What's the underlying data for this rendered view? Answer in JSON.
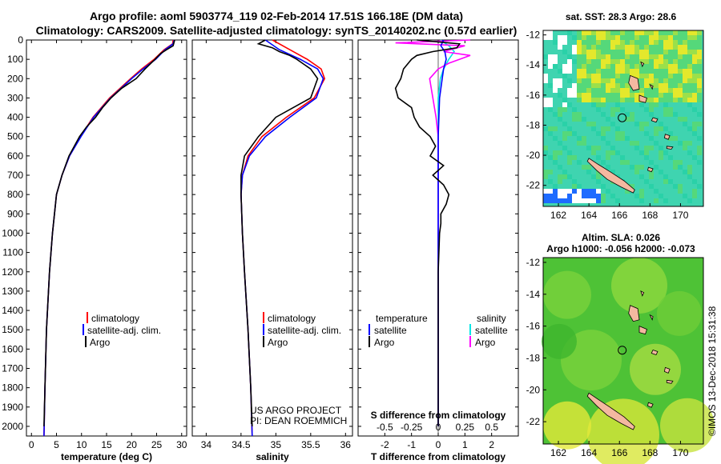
{
  "header": {
    "line1": "Argo profile: aoml 5903774_119 02-Feb-2014 17.51S 166.18E (DM data)",
    "line2": "Climatology: CARS2009. Satellite-adjusted climatology: synTS_20140202.nc (0.57d earlier)"
  },
  "credits": {
    "project": "US ARGO PROJECT",
    "pi": "PI: DEAN ROEMMICH",
    "imos": "©IMOS 13-Dec-2018 15:31:38"
  },
  "colors": {
    "climatology": "#ff0000",
    "satellite": "#0000ff",
    "argo": "#000000",
    "sal_satellite": "#00e5e5",
    "sal_argo": "#ff00ff"
  },
  "chart_data": [
    {
      "type": "line",
      "name": "temperature-profile",
      "xlabel": "temperature (deg C)",
      "ylabel": "depth",
      "xlim": [
        -1,
        31
      ],
      "ylim": [
        2050,
        0
      ],
      "xticks": [
        "0",
        "5",
        "10",
        "15",
        "20",
        "25",
        "30"
      ],
      "yticks": [
        "0",
        "100",
        "200",
        "300",
        "400",
        "500",
        "600",
        "700",
        "800",
        "900",
        "1000",
        "1100",
        "1200",
        "1300",
        "1400",
        "1500",
        "1600",
        "1700",
        "1800",
        "1900",
        "2000"
      ],
      "legend": [
        "climatology",
        "satellite-adj. clim.",
        "Argo"
      ],
      "series": [
        {
          "name": "climatology",
          "depth": [
            0,
            20,
            50,
            100,
            150,
            200,
            300,
            400,
            500,
            600,
            700,
            800,
            1000,
            1200,
            1500,
            1800,
            2050
          ],
          "values": [
            28.3,
            28.2,
            26.5,
            24.5,
            22.0,
            19.8,
            15.6,
            12.3,
            9.8,
            7.6,
            6.1,
            5.0,
            4.2,
            3.6,
            3.0,
            2.7,
            2.5
          ]
        },
        {
          "name": "satellite-adj. clim.",
          "depth": [
            0,
            20,
            50,
            100,
            150,
            200,
            300,
            400,
            500,
            600,
            700,
            800,
            1000,
            1200,
            1500,
            1800,
            2050
          ],
          "values": [
            28.5,
            28.3,
            26.7,
            24.8,
            22.3,
            20.0,
            15.8,
            12.4,
            9.9,
            7.6,
            6.1,
            5.0,
            4.2,
            3.6,
            3.0,
            2.7,
            2.5
          ]
        },
        {
          "name": "Argo",
          "depth": [
            0,
            10,
            30,
            50,
            70,
            100,
            150,
            200,
            250,
            300,
            350,
            400,
            450,
            500,
            600,
            700,
            800,
            1000,
            1200,
            1500,
            1800,
            2000
          ],
          "values": [
            28.6,
            28.5,
            28.3,
            27.0,
            25.8,
            24.7,
            22.7,
            20.9,
            18.0,
            15.9,
            14.2,
            12.8,
            11.0,
            9.6,
            7.5,
            6.1,
            5.0,
            4.2,
            3.6,
            3.0,
            2.7,
            2.5
          ]
        }
      ]
    },
    {
      "type": "line",
      "name": "salinity-profile",
      "xlabel": "salinity",
      "xlim": [
        33.8,
        36.1
      ],
      "ylim": [
        2050,
        0
      ],
      "xticks": [
        "34",
        "34.5",
        "35",
        "35.5",
        "36"
      ],
      "legend": [
        "climatology",
        "satellite-adj. clim.",
        "Argo"
      ],
      "series": [
        {
          "name": "climatology",
          "depth": [
            0,
            50,
            100,
            150,
            200,
            300,
            400,
            500,
            600,
            700,
            800,
            1000,
            1200,
            1500,
            1800,
            2050
          ],
          "values": [
            34.95,
            35.2,
            35.45,
            35.65,
            35.7,
            35.55,
            35.15,
            34.8,
            34.6,
            34.52,
            34.5,
            34.52,
            34.55,
            34.6,
            34.64,
            34.66
          ]
        },
        {
          "name": "satellite-adj. clim.",
          "depth": [
            0,
            50,
            100,
            150,
            200,
            300,
            400,
            500,
            600,
            700,
            800,
            1000,
            1200,
            1500,
            1800,
            2050
          ],
          "values": [
            34.85,
            35.05,
            35.35,
            35.6,
            35.68,
            35.58,
            35.2,
            34.85,
            34.62,
            34.52,
            34.5,
            34.52,
            34.55,
            34.6,
            34.64,
            34.66
          ]
        },
        {
          "name": "Argo",
          "depth": [
            0,
            20,
            40,
            60,
            80,
            100,
            150,
            200,
            300,
            400,
            500,
            600,
            700,
            800,
            1000,
            1200,
            1500,
            1800,
            2000
          ],
          "values": [
            34.85,
            34.75,
            34.95,
            35.05,
            35.2,
            35.3,
            35.5,
            35.6,
            35.5,
            35.0,
            34.75,
            34.55,
            34.5,
            34.5,
            34.52,
            34.55,
            34.6,
            34.64,
            34.66
          ]
        }
      ]
    },
    {
      "type": "line",
      "name": "difference-profile",
      "xlabel": "T difference from climatology",
      "x2label": "S difference from climatology",
      "xlim": [
        -3,
        3
      ],
      "x2lim": [
        -0.75,
        0.75
      ],
      "ylim": [
        2050,
        0
      ],
      "xticks": [
        "-2",
        "-1",
        "0",
        "1",
        "2"
      ],
      "x2ticks": [
        "-0.5",
        "-0.25",
        "0",
        "0.25",
        "0.5"
      ],
      "legend_left_title": "temperature",
      "legend_right_title": "salinity",
      "legend": [
        "satellite",
        "Argo"
      ],
      "series": [
        {
          "name": "temperature satellite",
          "axis": "T",
          "depth": [
            0,
            30,
            60,
            100,
            150,
            200,
            300,
            500,
            700,
            1000,
            2000
          ],
          "values": [
            0.2,
            0.1,
            0.25,
            0.3,
            0.2,
            0.15,
            0.05,
            0.0,
            0.0,
            0.0,
            0.0
          ]
        },
        {
          "name": "temperature Argo",
          "axis": "T",
          "depth": [
            0,
            20,
            40,
            60,
            80,
            100,
            150,
            200,
            250,
            300,
            350,
            400,
            450,
            500,
            550,
            600,
            650,
            700,
            750,
            800,
            850,
            900,
            950,
            1000,
            1200,
            1500,
            1800,
            2000
          ],
          "values": [
            -0.8,
            0.8,
            0.7,
            -0.2,
            -0.8,
            -1.0,
            -1.3,
            -1.4,
            -1.6,
            -1.5,
            -1.0,
            -0.9,
            -0.7,
            -0.3,
            -0.1,
            -0.3,
            0.2,
            -0.2,
            0.2,
            0.4,
            0.3,
            0.1,
            0.1,
            0.05,
            0.0,
            0.0,
            0.0,
            0.0
          ]
        },
        {
          "name": "salinity satellite",
          "axis": "S",
          "depth": [
            0,
            30,
            60,
            100,
            150,
            200,
            300,
            400,
            500,
            700,
            1000,
            2000
          ],
          "values": [
            0.02,
            0.1,
            0.15,
            0.1,
            0.05,
            0.02,
            0.0,
            0.0,
            0.0,
            0.0,
            0.0,
            0.0
          ]
        },
        {
          "name": "salinity Argo",
          "axis": "S",
          "depth": [
            0,
            15,
            30,
            45,
            60,
            80,
            100,
            120,
            150,
            200,
            300,
            400,
            500,
            600,
            800,
            1000,
            2000
          ],
          "values": [
            0.3,
            -0.4,
            0.25,
            0.15,
            0.05,
            0.3,
            0.2,
            0.1,
            0.0,
            -0.08,
            -0.05,
            -0.02,
            0.0,
            0.0,
            0.0,
            0.0,
            0.0
          ]
        }
      ]
    },
    {
      "type": "heatmap",
      "name": "sst-map",
      "title": "sat. SST: 28.3  Argo: 28.6",
      "xlim": [
        161,
        171.5
      ],
      "ylim": [
        -23.4,
        -11.7
      ],
      "xticks": [
        "162",
        "164",
        "166",
        "168",
        "170"
      ],
      "yticks": [
        "-12",
        "-14",
        "-16",
        "-18",
        "-20",
        "-22"
      ],
      "argo_position": [
        166.18,
        -17.51
      ]
    },
    {
      "type": "heatmap",
      "name": "sla-map",
      "title": "Altim. SLA: 0.026",
      "subtitle": "Argo h1000: -0.056  h2000: -0.073",
      "xlim": [
        161,
        171.5
      ],
      "ylim": [
        -23.4,
        -11.7
      ],
      "xticks": [
        "162",
        "164",
        "166",
        "168",
        "170"
      ],
      "yticks": [
        "-12",
        "-14",
        "-16",
        "-18",
        "-20",
        "-22"
      ],
      "argo_position": [
        166.18,
        -17.51
      ]
    }
  ]
}
